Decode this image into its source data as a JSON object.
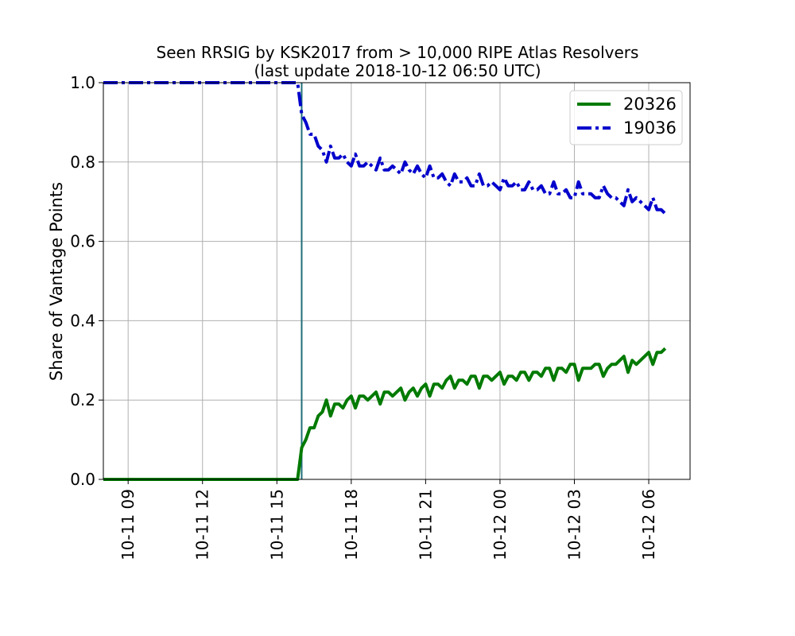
{
  "chart_data": {
    "type": "line",
    "title": "Seen RRSIG by KSK2017 from > 10,000 RIPE Atlas Resolvers",
    "subtitle": "(last update 2018-10-12 06:50 UTC)",
    "xlabel": "",
    "ylabel": "Share of Vantage Points",
    "x_range": [
      "2018-10-11 08:00",
      "2018-10-12 07:40"
    ],
    "ylim": [
      0.0,
      1.0
    ],
    "x_ticks": [
      "10-11 09",
      "10-11 12",
      "10-11 15",
      "10-11 18",
      "10-11 21",
      "10-12 00",
      "10-12 03",
      "10-12 06"
    ],
    "y_ticks": [
      "0.0",
      "0.2",
      "0.4",
      "0.6",
      "0.8",
      "1.0"
    ],
    "grid": true,
    "legend_position": "top-right",
    "vline": {
      "x": "2018-10-11 16:00",
      "color": "#1f6f7a"
    },
    "series": [
      {
        "name": "20326",
        "color": "#007a00",
        "style": "solid",
        "points": [
          [
            "2018-10-11 08:00",
            0.0
          ],
          [
            "2018-10-11 10:00",
            0.0
          ],
          [
            "2018-10-11 12:00",
            0.0
          ],
          [
            "2018-10-11 14:00",
            0.0
          ],
          [
            "2018-10-11 15:50",
            0.0
          ],
          [
            "2018-10-11 16:00",
            0.08
          ],
          [
            "2018-10-11 16:10",
            0.1
          ],
          [
            "2018-10-11 16:20",
            0.13
          ],
          [
            "2018-10-11 16:30",
            0.13
          ],
          [
            "2018-10-11 16:40",
            0.16
          ],
          [
            "2018-10-11 16:50",
            0.17
          ],
          [
            "2018-10-11 17:00",
            0.2
          ],
          [
            "2018-10-11 17:10",
            0.16
          ],
          [
            "2018-10-11 17:20",
            0.19
          ],
          [
            "2018-10-11 17:30",
            0.19
          ],
          [
            "2018-10-11 17:40",
            0.18
          ],
          [
            "2018-10-11 17:50",
            0.2
          ],
          [
            "2018-10-11 18:00",
            0.21
          ],
          [
            "2018-10-11 18:10",
            0.18
          ],
          [
            "2018-10-11 18:20",
            0.21
          ],
          [
            "2018-10-11 18:30",
            0.21
          ],
          [
            "2018-10-11 18:40",
            0.2
          ],
          [
            "2018-10-11 18:50",
            0.21
          ],
          [
            "2018-10-11 19:00",
            0.22
          ],
          [
            "2018-10-11 19:10",
            0.19
          ],
          [
            "2018-10-11 19:20",
            0.22
          ],
          [
            "2018-10-11 19:30",
            0.22
          ],
          [
            "2018-10-11 19:40",
            0.21
          ],
          [
            "2018-10-11 19:50",
            0.22
          ],
          [
            "2018-10-11 20:00",
            0.23
          ],
          [
            "2018-10-11 20:10",
            0.2
          ],
          [
            "2018-10-11 20:20",
            0.22
          ],
          [
            "2018-10-11 20:30",
            0.23
          ],
          [
            "2018-10-11 20:40",
            0.21
          ],
          [
            "2018-10-11 20:50",
            0.23
          ],
          [
            "2018-10-11 21:00",
            0.24
          ],
          [
            "2018-10-11 21:10",
            0.21
          ],
          [
            "2018-10-11 21:20",
            0.24
          ],
          [
            "2018-10-11 21:30",
            0.24
          ],
          [
            "2018-10-11 21:40",
            0.23
          ],
          [
            "2018-10-11 21:50",
            0.25
          ],
          [
            "2018-10-11 22:00",
            0.26
          ],
          [
            "2018-10-11 22:10",
            0.23
          ],
          [
            "2018-10-11 22:20",
            0.25
          ],
          [
            "2018-10-11 22:30",
            0.25
          ],
          [
            "2018-10-11 22:40",
            0.24
          ],
          [
            "2018-10-11 22:50",
            0.26
          ],
          [
            "2018-10-11 23:00",
            0.26
          ],
          [
            "2018-10-11 23:10",
            0.23
          ],
          [
            "2018-10-11 23:20",
            0.26
          ],
          [
            "2018-10-11 23:30",
            0.26
          ],
          [
            "2018-10-11 23:40",
            0.25
          ],
          [
            "2018-10-11 23:50",
            0.26
          ],
          [
            "2018-10-12 00:00",
            0.27
          ],
          [
            "2018-10-12 00:10",
            0.24
          ],
          [
            "2018-10-12 00:20",
            0.26
          ],
          [
            "2018-10-12 00:30",
            0.26
          ],
          [
            "2018-10-12 00:40",
            0.25
          ],
          [
            "2018-10-12 00:50",
            0.27
          ],
          [
            "2018-10-12 01:00",
            0.27
          ],
          [
            "2018-10-12 01:10",
            0.25
          ],
          [
            "2018-10-12 01:20",
            0.27
          ],
          [
            "2018-10-12 01:30",
            0.27
          ],
          [
            "2018-10-12 01:40",
            0.26
          ],
          [
            "2018-10-12 01:50",
            0.28
          ],
          [
            "2018-10-12 02:00",
            0.28
          ],
          [
            "2018-10-12 02:10",
            0.25
          ],
          [
            "2018-10-12 02:20",
            0.28
          ],
          [
            "2018-10-12 02:30",
            0.28
          ],
          [
            "2018-10-12 02:40",
            0.27
          ],
          [
            "2018-10-12 02:50",
            0.29
          ],
          [
            "2018-10-12 03:00",
            0.29
          ],
          [
            "2018-10-12 03:10",
            0.25
          ],
          [
            "2018-10-12 03:20",
            0.28
          ],
          [
            "2018-10-12 03:30",
            0.28
          ],
          [
            "2018-10-12 03:40",
            0.28
          ],
          [
            "2018-10-12 03:50",
            0.29
          ],
          [
            "2018-10-12 04:00",
            0.29
          ],
          [
            "2018-10-12 04:10",
            0.26
          ],
          [
            "2018-10-12 04:20",
            0.28
          ],
          [
            "2018-10-12 04:30",
            0.29
          ],
          [
            "2018-10-12 04:40",
            0.29
          ],
          [
            "2018-10-12 04:50",
            0.3
          ],
          [
            "2018-10-12 05:00",
            0.31
          ],
          [
            "2018-10-12 05:10",
            0.27
          ],
          [
            "2018-10-12 05:20",
            0.3
          ],
          [
            "2018-10-12 05:30",
            0.29
          ],
          [
            "2018-10-12 05:40",
            0.3
          ],
          [
            "2018-10-12 05:50",
            0.31
          ],
          [
            "2018-10-12 06:00",
            0.32
          ],
          [
            "2018-10-12 06:10",
            0.29
          ],
          [
            "2018-10-12 06:20",
            0.32
          ],
          [
            "2018-10-12 06:30",
            0.32
          ],
          [
            "2018-10-12 06:40",
            0.33
          ]
        ]
      },
      {
        "name": "19036",
        "color": "#0000cc",
        "style": "dashdot",
        "points": [
          [
            "2018-10-11 08:00",
            1.0
          ],
          [
            "2018-10-11 10:00",
            1.0
          ],
          [
            "2018-10-11 12:00",
            1.0
          ],
          [
            "2018-10-11 14:00",
            1.0
          ],
          [
            "2018-10-11 15:50",
            1.0
          ],
          [
            "2018-10-11 16:00",
            0.92
          ],
          [
            "2018-10-11 16:10",
            0.9
          ],
          [
            "2018-10-11 16:20",
            0.87
          ],
          [
            "2018-10-11 16:30",
            0.87
          ],
          [
            "2018-10-11 16:40",
            0.84
          ],
          [
            "2018-10-11 16:50",
            0.83
          ],
          [
            "2018-10-11 17:00",
            0.8
          ],
          [
            "2018-10-11 17:10",
            0.84
          ],
          [
            "2018-10-11 17:20",
            0.81
          ],
          [
            "2018-10-11 17:30",
            0.81
          ],
          [
            "2018-10-11 17:40",
            0.82
          ],
          [
            "2018-10-11 17:50",
            0.8
          ],
          [
            "2018-10-11 18:00",
            0.79
          ],
          [
            "2018-10-11 18:10",
            0.82
          ],
          [
            "2018-10-11 18:20",
            0.79
          ],
          [
            "2018-10-11 18:30",
            0.79
          ],
          [
            "2018-10-11 18:40",
            0.8
          ],
          [
            "2018-10-11 18:50",
            0.79
          ],
          [
            "2018-10-11 19:00",
            0.78
          ],
          [
            "2018-10-11 19:10",
            0.81
          ],
          [
            "2018-10-11 19:20",
            0.78
          ],
          [
            "2018-10-11 19:30",
            0.78
          ],
          [
            "2018-10-11 19:40",
            0.79
          ],
          [
            "2018-10-11 19:50",
            0.78
          ],
          [
            "2018-10-11 20:00",
            0.77
          ],
          [
            "2018-10-11 20:10",
            0.8
          ],
          [
            "2018-10-11 20:20",
            0.78
          ],
          [
            "2018-10-11 20:30",
            0.77
          ],
          [
            "2018-10-11 20:40",
            0.79
          ],
          [
            "2018-10-11 20:50",
            0.77
          ],
          [
            "2018-10-11 21:00",
            0.76
          ],
          [
            "2018-10-11 21:10",
            0.79
          ],
          [
            "2018-10-11 21:20",
            0.76
          ],
          [
            "2018-10-11 21:30",
            0.76
          ],
          [
            "2018-10-11 21:40",
            0.77
          ],
          [
            "2018-10-11 21:50",
            0.75
          ],
          [
            "2018-10-11 22:00",
            0.74
          ],
          [
            "2018-10-11 22:10",
            0.77
          ],
          [
            "2018-10-11 22:20",
            0.75
          ],
          [
            "2018-10-11 22:30",
            0.75
          ],
          [
            "2018-10-11 22:40",
            0.76
          ],
          [
            "2018-10-11 22:50",
            0.74
          ],
          [
            "2018-10-11 23:00",
            0.74
          ],
          [
            "2018-10-11 23:10",
            0.77
          ],
          [
            "2018-10-11 23:20",
            0.74
          ],
          [
            "2018-10-11 23:30",
            0.74
          ],
          [
            "2018-10-11 23:40",
            0.75
          ],
          [
            "2018-10-11 23:50",
            0.74
          ],
          [
            "2018-10-12 00:00",
            0.73
          ],
          [
            "2018-10-12 00:10",
            0.76
          ],
          [
            "2018-10-12 00:20",
            0.74
          ],
          [
            "2018-10-12 00:30",
            0.74
          ],
          [
            "2018-10-12 00:40",
            0.75
          ],
          [
            "2018-10-12 00:50",
            0.73
          ],
          [
            "2018-10-12 01:00",
            0.73
          ],
          [
            "2018-10-12 01:10",
            0.75
          ],
          [
            "2018-10-12 01:20",
            0.73
          ],
          [
            "2018-10-12 01:30",
            0.73
          ],
          [
            "2018-10-12 01:40",
            0.74
          ],
          [
            "2018-10-12 01:50",
            0.72
          ],
          [
            "2018-10-12 02:00",
            0.72
          ],
          [
            "2018-10-12 02:10",
            0.75
          ],
          [
            "2018-10-12 02:20",
            0.72
          ],
          [
            "2018-10-12 02:30",
            0.72
          ],
          [
            "2018-10-12 02:40",
            0.73
          ],
          [
            "2018-10-12 02:50",
            0.71
          ],
          [
            "2018-10-12 03:00",
            0.71
          ],
          [
            "2018-10-12 03:10",
            0.75
          ],
          [
            "2018-10-12 03:20",
            0.72
          ],
          [
            "2018-10-12 03:30",
            0.72
          ],
          [
            "2018-10-12 03:40",
            0.72
          ],
          [
            "2018-10-12 03:50",
            0.71
          ],
          [
            "2018-10-12 04:00",
            0.71
          ],
          [
            "2018-10-12 04:10",
            0.74
          ],
          [
            "2018-10-12 04:20",
            0.72
          ],
          [
            "2018-10-12 04:30",
            0.71
          ],
          [
            "2018-10-12 04:40",
            0.71
          ],
          [
            "2018-10-12 04:50",
            0.7
          ],
          [
            "2018-10-12 05:00",
            0.69
          ],
          [
            "2018-10-12 05:10",
            0.73
          ],
          [
            "2018-10-12 05:20",
            0.7
          ],
          [
            "2018-10-12 05:30",
            0.71
          ],
          [
            "2018-10-12 05:40",
            0.7
          ],
          [
            "2018-10-12 05:50",
            0.69
          ],
          [
            "2018-10-12 06:00",
            0.68
          ],
          [
            "2018-10-12 06:10",
            0.71
          ],
          [
            "2018-10-12 06:20",
            0.68
          ],
          [
            "2018-10-12 06:30",
            0.68
          ],
          [
            "2018-10-12 06:40",
            0.67
          ]
        ]
      }
    ]
  }
}
